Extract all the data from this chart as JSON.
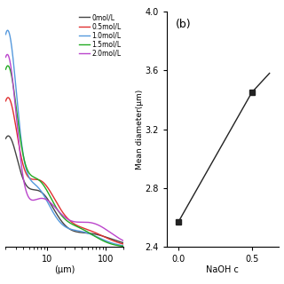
{
  "left_panel": {
    "legend_labels": [
      "0mol/L",
      "0.5mol/L",
      "1.0mol/L",
      "1.5mol/L",
      "2.0mol/L"
    ],
    "legend_colors": [
      "#444444",
      "#e03030",
      "#5599dd",
      "#22aa22",
      "#bb44cc"
    ],
    "xlabel": "(μm)",
    "xmin": 2,
    "xmax": 200,
    "ymin": 0,
    "ymax": 14
  },
  "right_panel": {
    "label": "(b)",
    "xlabel": "NaOH c",
    "ylabel": "Mean diameter(μm)",
    "x_data": [
      0.0,
      0.5
    ],
    "y_data": [
      2.57,
      3.45
    ],
    "ylim": [
      2.4,
      4.0
    ],
    "yticks": [
      2.4,
      2.8,
      3.2,
      3.6,
      4.0
    ],
    "xticks": [
      0.0,
      0.5
    ],
    "marker": "s",
    "marker_color": "#222222",
    "line_color": "#222222"
  }
}
